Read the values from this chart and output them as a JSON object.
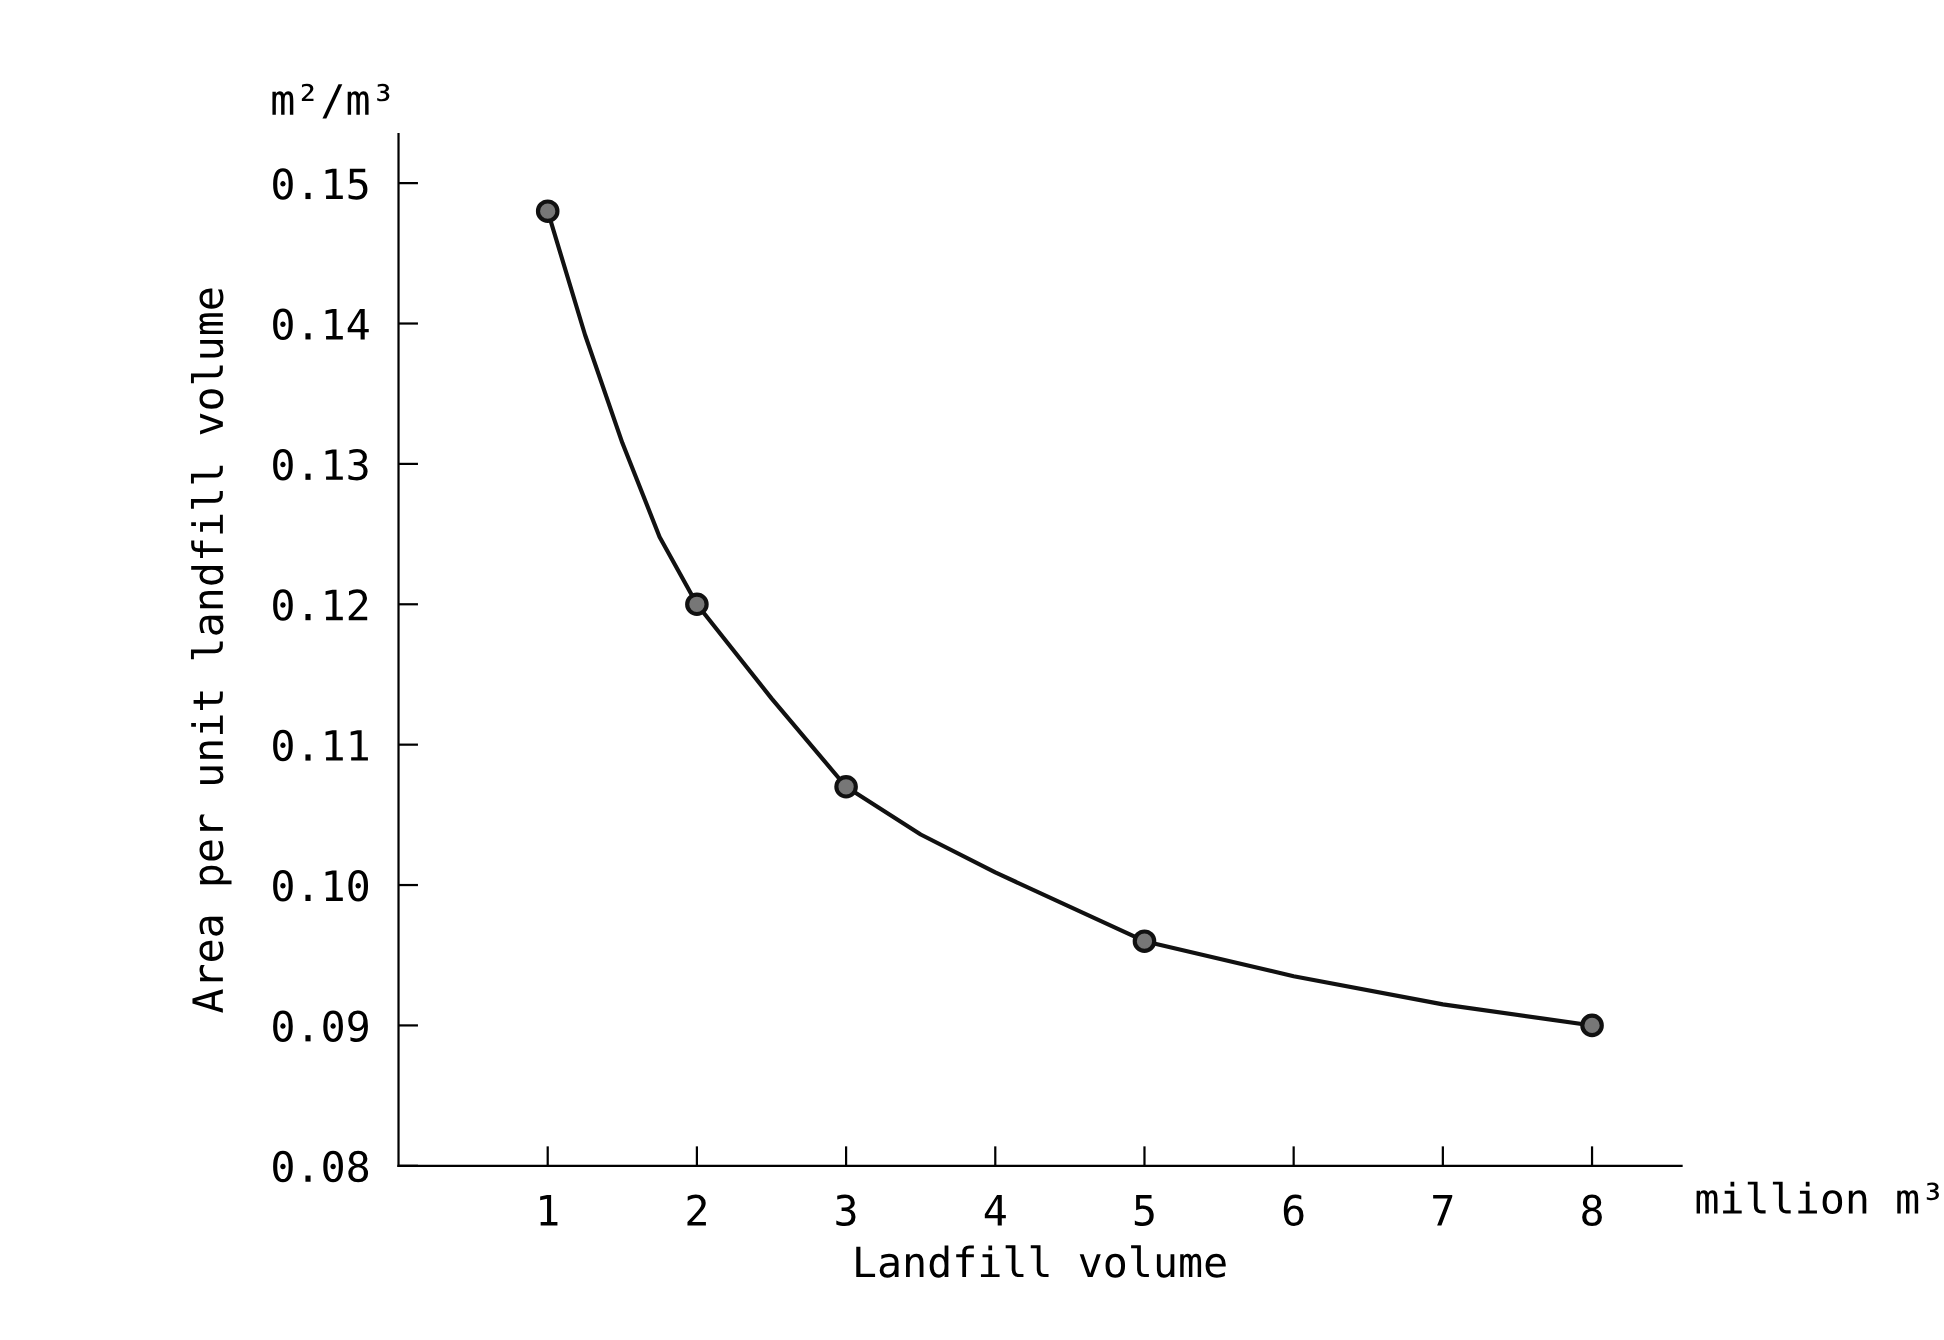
{
  "chart_data": {
    "type": "line",
    "xlabel": "Landfill volume",
    "ylabel": "Area per unit landfill volume",
    "annotations": [
      "m²/m³",
      "million m³"
    ],
    "x": [
      1,
      2,
      3,
      5,
      8
    ],
    "series": [
      {
        "marker": "none",
        "color": "#111111",
        "x": [
          1,
          1.25,
          1.5,
          1.75,
          2,
          2.5,
          3,
          3.5,
          4,
          5,
          6,
          7,
          8
        ],
        "values": [
          0.148,
          0.1392,
          0.1315,
          0.1248,
          0.12,
          0.1133,
          0.107,
          0.1036,
          0.1009,
          0.096,
          0.0935,
          0.0915,
          0.09
        ]
      },
      {
        "type": "scatter",
        "marker": "circle",
        "color": "#111111",
        "values": [
          0.148,
          0.12,
          0.107,
          0.096,
          0.09
        ]
      }
    ],
    "xlim": [
      0,
      8.6
    ],
    "ylim": [
      0.08,
      0.1535
    ],
    "xticks": [
      1,
      2,
      3,
      4,
      5,
      6,
      7,
      8
    ],
    "yticks": [
      {
        "value": 0.08,
        "label": "0.08"
      },
      {
        "value": 0.09,
        "label": "0.09"
      },
      {
        "value": 0.1,
        "label": "0.10"
      },
      {
        "value": 0.11,
        "label": "0.11"
      },
      {
        "value": 0.12,
        "label": "0.12"
      },
      {
        "value": 0.13,
        "label": "0.13"
      },
      {
        "value": 0.14,
        "label": "0.14"
      },
      {
        "value": 0.15,
        "label": "0.15"
      }
    ],
    "grid": false,
    "legend": false,
    "line_style": "solid"
  }
}
